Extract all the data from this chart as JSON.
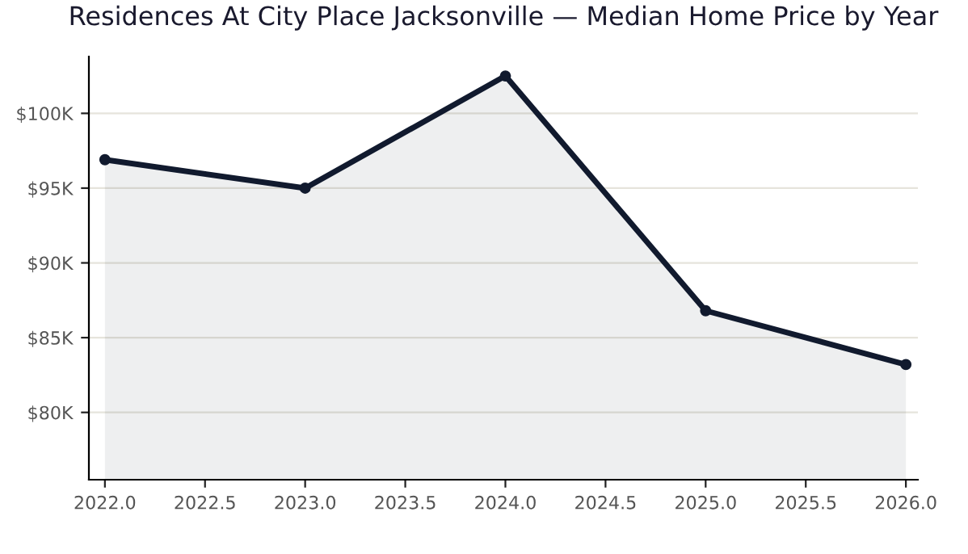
{
  "chart_data": {
    "type": "area",
    "title": "Residences At City Place Jacksonville — Median Home Price by Year",
    "x": [
      2022,
      2023,
      2024,
      2025,
      2026
    ],
    "series": [
      {
        "color": "#111a2e",
        "values": [
          96900,
          95000,
          102500,
          86800,
          83200
        ]
      }
    ],
    "xlim": [
      2021.92,
      2026.06
    ],
    "xticks": [
      {
        "value": 2022,
        "label": "2022.0"
      },
      2022.5,
      {
        "value": 2023,
        "label": "2023.0"
      },
      2023.5,
      {
        "value": 2024,
        "label": "2024.0"
      },
      2024.5,
      {
        "value": 2025,
        "label": "2025.0"
      },
      2025.5,
      {
        "value": 2026,
        "label": "2026.0"
      }
    ],
    "ylim": [
      75500,
      103800
    ],
    "yticks": [
      {
        "value": 80000,
        "label": "$80K"
      },
      {
        "value": 85000,
        "label": "$85K"
      },
      {
        "value": 90000,
        "label": "$90K"
      },
      {
        "value": 95000,
        "label": "$95K"
      },
      {
        "value": 100000,
        "label": "$100K"
      }
    ],
    "grid": "y",
    "marker": "circle",
    "line_style": "solid"
  }
}
